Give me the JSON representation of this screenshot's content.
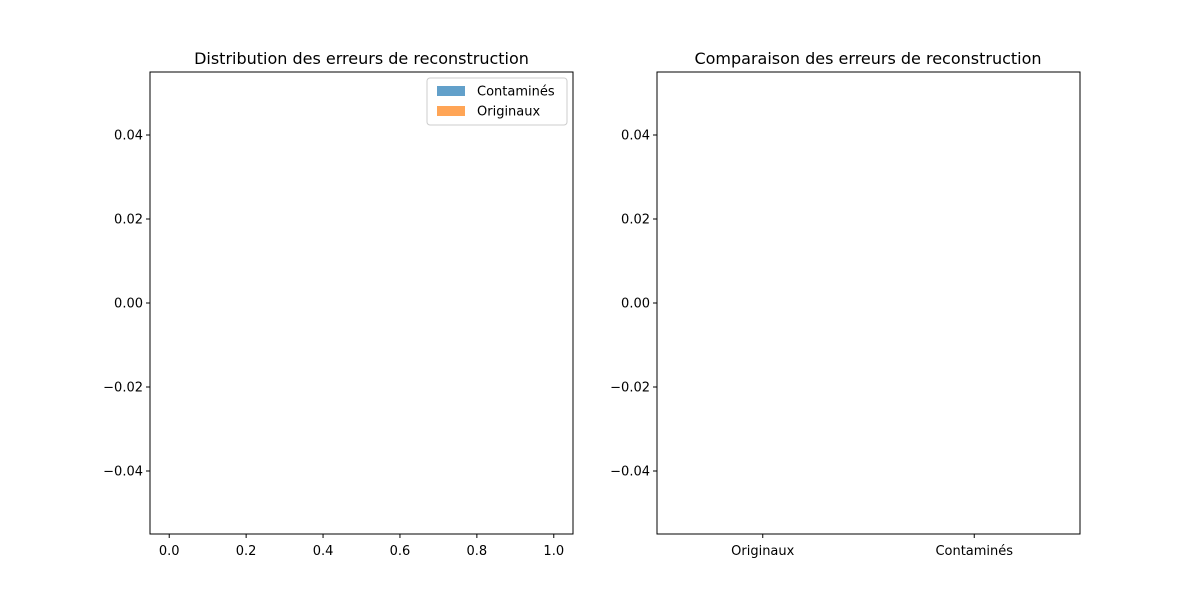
{
  "chart_data": [
    {
      "type": "bar",
      "title": "Distribution des erreurs de reconstruction",
      "xlabel": "",
      "ylabel": "",
      "xlim": [
        -0.05,
        1.05
      ],
      "ylim": [
        -0.055,
        0.055
      ],
      "xticks": [
        "0.0",
        "0.2",
        "0.4",
        "0.6",
        "0.8",
        "1.0"
      ],
      "xtick_values": [
        0,
        0.2,
        0.4,
        0.6,
        0.8,
        1.0
      ],
      "yticks": [
        "−0.04",
        "−0.02",
        "0.00",
        "0.02",
        "0.04"
      ],
      "ytick_values": [
        -0.04,
        -0.02,
        0,
        0.02,
        0.04
      ],
      "series": [
        {
          "name": "Contaminés",
          "values": [],
          "color": "#1f77b4"
        },
        {
          "name": "Originaux",
          "values": [],
          "color": "#ff7f0e"
        }
      ],
      "legend": "top-right",
      "grid": false
    },
    {
      "type": "box",
      "title": "Comparaison des erreurs de reconstruction",
      "xlabel": "",
      "ylabel": "",
      "categories": [
        "Originaux",
        "Contaminés"
      ],
      "ylim": [
        -0.055,
        0.055
      ],
      "yticks": [
        "−0.04",
        "−0.02",
        "0.00",
        "0.02",
        "0.04"
      ],
      "ytick_values": [
        -0.04,
        -0.02,
        0,
        0.02,
        0.04
      ],
      "values": [
        [],
        []
      ],
      "grid": false
    }
  ]
}
